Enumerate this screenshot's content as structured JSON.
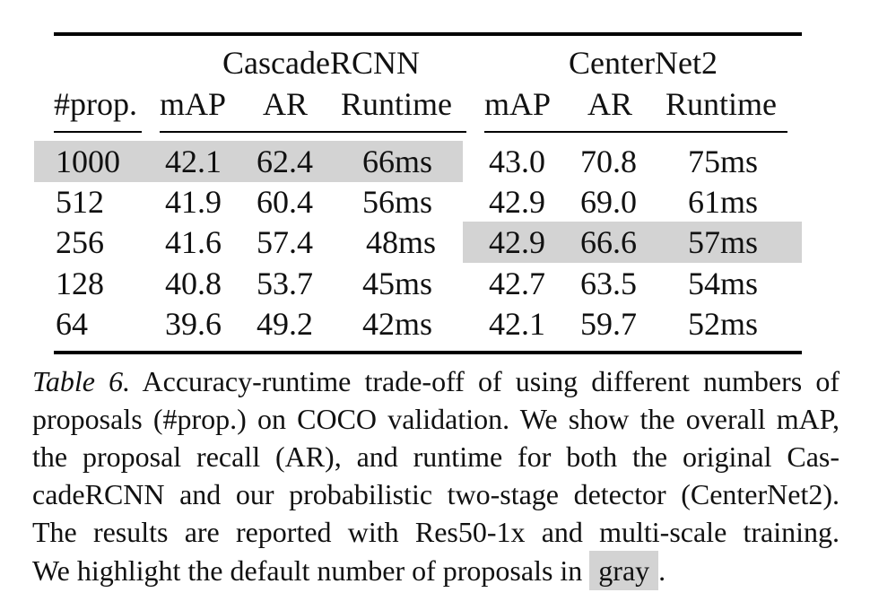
{
  "table": {
    "groups": {
      "cascade": "CascadeRCNN",
      "centernet": "CenterNet2"
    },
    "headers": {
      "prop": "#prop.",
      "c_map": "mAP",
      "c_ar": "AR",
      "c_runtime": "Runtime",
      "n_map": "mAP",
      "n_ar": "AR",
      "n_runtime": "Runtime"
    },
    "rows": [
      {
        "prop": "1000",
        "c_map": "42.1",
        "c_ar": "62.4",
        "c_runtime": "66ms",
        "n_map": "43.0",
        "n_ar": "70.8",
        "n_runtime": "75ms"
      },
      {
        "prop": "512",
        "c_map": "41.9",
        "c_ar": "60.4",
        "c_runtime": "56ms",
        "n_map": "42.9",
        "n_ar": "69.0",
        "n_runtime": "61ms"
      },
      {
        "prop": "256",
        "c_map": "41.6",
        "c_ar": "57.4",
        "c_runtime": "48ms",
        "n_map": "42.9",
        "n_ar": "66.6",
        "n_runtime": "57ms"
      },
      {
        "prop": "128",
        "c_map": "40.8",
        "c_ar": "53.7",
        "c_runtime": "45ms",
        "n_map": "42.7",
        "n_ar": "63.5",
        "n_runtime": "54ms"
      },
      {
        "prop": "64",
        "c_map": "39.6",
        "c_ar": "49.2",
        "c_runtime": "42ms",
        "n_map": "42.1",
        "n_ar": "59.7",
        "n_runtime": "52ms"
      }
    ],
    "highlight_color": "#d3d3d3"
  },
  "caption": {
    "label": "Table 6.",
    "line1": "Accuracy-runtime trade-off of using different numbers of",
    "line2": "proposals (#prop.) on COCO validation. We show the overall mAP,",
    "line3": "the proposal recall (AR), and runtime for both the original Cas-",
    "line4": "cadeRCNN and our probabilistic two-stage detector (CenterNet2).",
    "line5": "The results are reported with Res50-1x and multi-scale training.",
    "line6_pre": "We highlight the default number of proposals in",
    "gray_word": "gray",
    "line6_post": "."
  }
}
